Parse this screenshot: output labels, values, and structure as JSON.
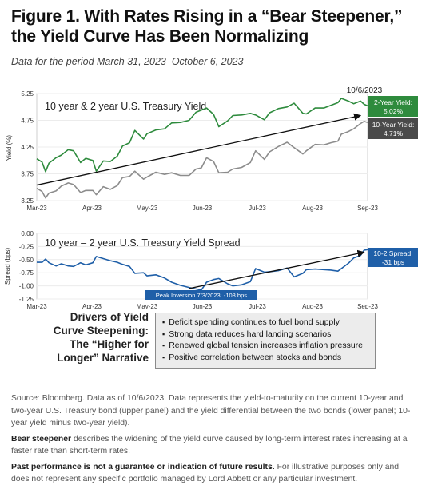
{
  "header": {
    "title": "Figure 1. With Rates Rising in a “Bear Steepener,” the Yield Curve Has Been Normalizing",
    "subtitle": "Data for the period March 31, 2023–October 6, 2023"
  },
  "colors": {
    "green": "#2e8b3d",
    "gray": "#8c8c8c",
    "blue": "#1f5fa8",
    "dark_box": "#4a4a4a",
    "green_box": "#2e8b3d"
  },
  "chart_data": [
    {
      "type": "line",
      "title": "10 year & 2 year U.S. Treasury Yield",
      "ylabel": "Yield (%)",
      "xlabel": "",
      "ylim": [
        3.25,
        5.25
      ],
      "yticks": [
        "5.25",
        "4.75",
        "4.25",
        "3.75",
        "3.25"
      ],
      "xticks": [
        "Mar-23",
        "Apr-23",
        "May-23",
        "Jun-23",
        "Jul-23",
        "Aug-23",
        "Sep-23"
      ],
      "x_start": "2023-03-31",
      "x_end": "2023-10-06",
      "date_label": "10/6/2023",
      "series": [
        {
          "name": "2-Year Yield",
          "color": "#2e8b3d",
          "callout": "2-Year Yield:\n5.02%",
          "points": [
            [
              "2023-03-31",
              4.03
            ],
            [
              "2023-04-03",
              3.97
            ],
            [
              "2023-04-05",
              3.79
            ],
            [
              "2023-04-07",
              3.95
            ],
            [
              "2023-04-11",
              4.05
            ],
            [
              "2023-04-14",
              4.1
            ],
            [
              "2023-04-18",
              4.2
            ],
            [
              "2023-04-21",
              4.18
            ],
            [
              "2023-04-25",
              3.96
            ],
            [
              "2023-04-28",
              4.04
            ],
            [
              "2023-05-02",
              4.0
            ],
            [
              "2023-05-04",
              3.8
            ],
            [
              "2023-05-08",
              3.99
            ],
            [
              "2023-05-12",
              3.98
            ],
            [
              "2023-05-16",
              4.08
            ],
            [
              "2023-05-19",
              4.27
            ],
            [
              "2023-05-23",
              4.33
            ],
            [
              "2023-05-26",
              4.56
            ],
            [
              "2023-05-31",
              4.4
            ],
            [
              "2023-06-02",
              4.5
            ],
            [
              "2023-06-07",
              4.57
            ],
            [
              "2023-06-12",
              4.59
            ],
            [
              "2023-06-16",
              4.7
            ],
            [
              "2023-06-21",
              4.71
            ],
            [
              "2023-06-26",
              4.75
            ],
            [
              "2023-06-30",
              4.9
            ],
            [
              "2023-07-03",
              4.94
            ],
            [
              "2023-07-06",
              4.98
            ],
            [
              "2023-07-10",
              4.86
            ],
            [
              "2023-07-13",
              4.63
            ],
            [
              "2023-07-18",
              4.74
            ],
            [
              "2023-07-21",
              4.84
            ],
            [
              "2023-07-26",
              4.85
            ],
            [
              "2023-07-31",
              4.88
            ],
            [
              "2023-08-03",
              4.85
            ],
            [
              "2023-08-08",
              4.76
            ],
            [
              "2023-08-11",
              4.89
            ],
            [
              "2023-08-16",
              4.97
            ],
            [
              "2023-08-21",
              5.0
            ],
            [
              "2023-08-25",
              5.07
            ],
            [
              "2023-08-30",
              4.88
            ],
            [
              "2023-09-01",
              4.87
            ],
            [
              "2023-09-06",
              4.98
            ],
            [
              "2023-09-11",
              4.98
            ],
            [
              "2023-09-15",
              5.03
            ],
            [
              "2023-09-19",
              5.08
            ],
            [
              "2023-09-21",
              5.16
            ],
            [
              "2023-09-25",
              5.11
            ],
            [
              "2023-09-28",
              5.06
            ],
            [
              "2023-10-02",
              5.11
            ],
            [
              "2023-10-04",
              5.05
            ],
            [
              "2023-10-06",
              5.02
            ]
          ]
        },
        {
          "name": "10-Year Yield",
          "color": "#8c8c8c",
          "callout": "10-Year Yield:\n4.71%",
          "points": [
            [
              "2023-03-31",
              3.48
            ],
            [
              "2023-04-03",
              3.42
            ],
            [
              "2023-04-05",
              3.3
            ],
            [
              "2023-04-07",
              3.39
            ],
            [
              "2023-04-11",
              3.43
            ],
            [
              "2023-04-14",
              3.52
            ],
            [
              "2023-04-18",
              3.58
            ],
            [
              "2023-04-21",
              3.55
            ],
            [
              "2023-04-25",
              3.4
            ],
            [
              "2023-04-28",
              3.44
            ],
            [
              "2023-05-02",
              3.44
            ],
            [
              "2023-05-04",
              3.36
            ],
            [
              "2023-05-08",
              3.51
            ],
            [
              "2023-05-12",
              3.46
            ],
            [
              "2023-05-16",
              3.53
            ],
            [
              "2023-05-19",
              3.68
            ],
            [
              "2023-05-23",
              3.7
            ],
            [
              "2023-05-26",
              3.8
            ],
            [
              "2023-05-31",
              3.65
            ],
            [
              "2023-06-02",
              3.69
            ],
            [
              "2023-06-07",
              3.78
            ],
            [
              "2023-06-12",
              3.74
            ],
            [
              "2023-06-16",
              3.77
            ],
            [
              "2023-06-21",
              3.72
            ],
            [
              "2023-06-26",
              3.72
            ],
            [
              "2023-06-30",
              3.84
            ],
            [
              "2023-07-03",
              3.86
            ],
            [
              "2023-07-06",
              4.05
            ],
            [
              "2023-07-10",
              3.98
            ],
            [
              "2023-07-13",
              3.77
            ],
            [
              "2023-07-18",
              3.78
            ],
            [
              "2023-07-21",
              3.84
            ],
            [
              "2023-07-26",
              3.87
            ],
            [
              "2023-07-31",
              3.96
            ],
            [
              "2023-08-03",
              4.18
            ],
            [
              "2023-08-08",
              4.02
            ],
            [
              "2023-08-11",
              4.16
            ],
            [
              "2023-08-16",
              4.26
            ],
            [
              "2023-08-21",
              4.34
            ],
            [
              "2023-08-25",
              4.24
            ],
            [
              "2023-08-30",
              4.12
            ],
            [
              "2023-09-01",
              4.18
            ],
            [
              "2023-09-06",
              4.3
            ],
            [
              "2023-09-11",
              4.29
            ],
            [
              "2023-09-15",
              4.33
            ],
            [
              "2023-09-19",
              4.36
            ],
            [
              "2023-09-21",
              4.49
            ],
            [
              "2023-09-25",
              4.54
            ],
            [
              "2023-09-28",
              4.59
            ],
            [
              "2023-10-02",
              4.69
            ],
            [
              "2023-10-04",
              4.73
            ],
            [
              "2023-10-06",
              4.71
            ]
          ]
        }
      ],
      "trend_arrow": {
        "from": [
          "2023-03-31",
          3.54
        ],
        "to": [
          "2023-10-02",
          4.84
        ]
      },
      "legend": "right"
    },
    {
      "type": "line",
      "title": "10 year – 2 year U.S. Treasury Yield Spread",
      "ylabel": "Spread (bps)",
      "xlabel": "",
      "ylim": [
        -1.25,
        0.0
      ],
      "yticks": [
        "0.00",
        "-0.25",
        "-0.50",
        "-0.75",
        "-1.00",
        "-1.25"
      ],
      "xticks": [
        "Mar-23",
        "Apr-23",
        "May-23",
        "Jun-23",
        "Jul-23",
        "Aug-23",
        "Sep-23"
      ],
      "x_start": "2023-03-31",
      "x_end": "2023-10-06",
      "series": [
        {
          "name": "10-2 Spread",
          "color": "#1f5fa8",
          "callout": "10-2 Spread:\n-31 bps",
          "points": [
            [
              "2023-03-31",
              -0.55
            ],
            [
              "2023-04-03",
              -0.55
            ],
            [
              "2023-04-05",
              -0.49
            ],
            [
              "2023-04-07",
              -0.56
            ],
            [
              "2023-04-11",
              -0.62
            ],
            [
              "2023-04-14",
              -0.58
            ],
            [
              "2023-04-18",
              -0.62
            ],
            [
              "2023-04-21",
              -0.63
            ],
            [
              "2023-04-25",
              -0.56
            ],
            [
              "2023-04-28",
              -0.6
            ],
            [
              "2023-05-02",
              -0.56
            ],
            [
              "2023-05-04",
              -0.44
            ],
            [
              "2023-05-08",
              -0.48
            ],
            [
              "2023-05-12",
              -0.52
            ],
            [
              "2023-05-16",
              -0.55
            ],
            [
              "2023-05-19",
              -0.59
            ],
            [
              "2023-05-23",
              -0.63
            ],
            [
              "2023-05-26",
              -0.76
            ],
            [
              "2023-05-31",
              -0.75
            ],
            [
              "2023-06-02",
              -0.81
            ],
            [
              "2023-06-07",
              -0.79
            ],
            [
              "2023-06-12",
              -0.85
            ],
            [
              "2023-06-16",
              -0.93
            ],
            [
              "2023-06-21",
              -0.99
            ],
            [
              "2023-06-26",
              -1.03
            ],
            [
              "2023-06-30",
              -1.06
            ],
            [
              "2023-07-03",
              -1.08
            ],
            [
              "2023-07-06",
              -0.93
            ],
            [
              "2023-07-10",
              -0.88
            ],
            [
              "2023-07-13",
              -0.86
            ],
            [
              "2023-07-18",
              -0.96
            ],
            [
              "2023-07-21",
              -1.0
            ],
            [
              "2023-07-26",
              -0.98
            ],
            [
              "2023-07-31",
              -0.92
            ],
            [
              "2023-08-03",
              -0.67
            ],
            [
              "2023-08-08",
              -0.74
            ],
            [
              "2023-08-11",
              -0.73
            ],
            [
              "2023-08-16",
              -0.71
            ],
            [
              "2023-08-21",
              -0.66
            ],
            [
              "2023-08-25",
              -0.83
            ],
            [
              "2023-08-30",
              -0.76
            ],
            [
              "2023-09-01",
              -0.69
            ],
            [
              "2023-09-06",
              -0.68
            ],
            [
              "2023-09-11",
              -0.69
            ],
            [
              "2023-09-15",
              -0.7
            ],
            [
              "2023-09-19",
              -0.72
            ],
            [
              "2023-09-21",
              -0.67
            ],
            [
              "2023-09-25",
              -0.57
            ],
            [
              "2023-09-28",
              -0.47
            ],
            [
              "2023-10-02",
              -0.42
            ],
            [
              "2023-10-04",
              -0.32
            ],
            [
              "2023-10-06",
              -0.31
            ]
          ]
        }
      ],
      "annotation": {
        "text": "Peak Inversion 7/3/2023: -108 bps",
        "at": [
          "2023-07-03",
          -1.08
        ]
      },
      "trend_arrow": {
        "from": [
          "2023-06-26",
          -1.05
        ],
        "to": [
          "2023-10-04",
          -0.36
        ]
      },
      "legend": "right"
    }
  ],
  "drivers": {
    "label": "Drivers of Yield Curve Steepening: The “Higher for Longer” Narrative",
    "items": [
      "Deficit spending continues to fuel bond supply",
      "Strong data reduces hard landing scenarios",
      "Renewed global tension increases inflation pressure",
      "Positive correlation between stocks and bonds"
    ]
  },
  "notes": {
    "source": "Source: Bloomberg. Data as of 10/6/2023. Data represents the yield-to-maturity on the current 10-year and two-year U.S. Treasury bond (upper panel) and the yield differential between the two bonds (lower panel; 10-year yield minus two-year yield).",
    "bear_term": "Bear steepener",
    "bear_text": " describes the widening of the yield curve caused by long-term interest rates increasing at a faster rate than short-term rates.",
    "past_term": "Past performance is not a guarantee or indication of future results.",
    "past_text": " For illustrative purposes only and does not represent any specific portfolio managed by Lord Abbett or any particular investment."
  }
}
